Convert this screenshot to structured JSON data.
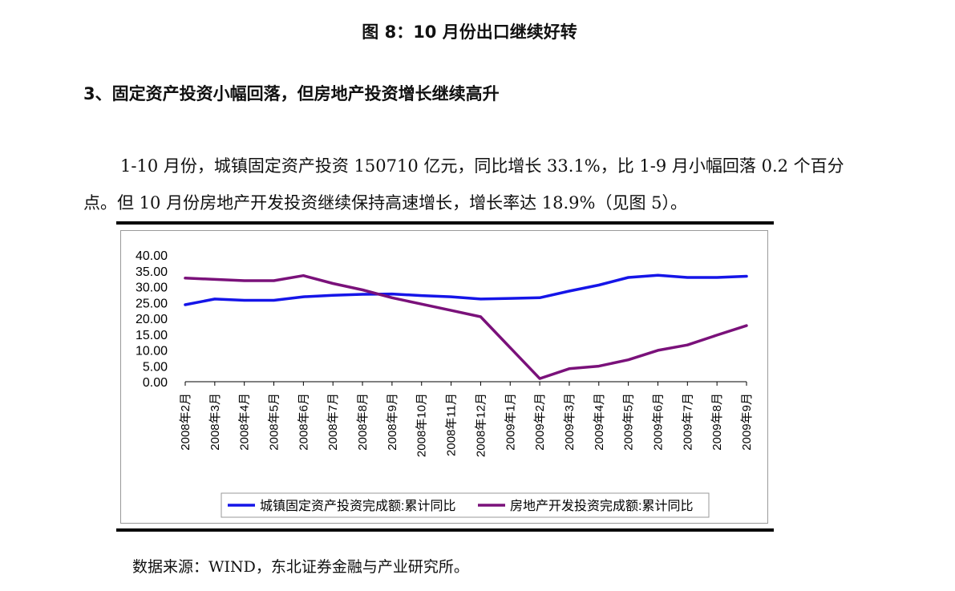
{
  "figure_caption": "图 8：10 月份出口继续好转",
  "section_heading": "3、固定资产投资小幅回落，但房地产投资增长继续高升",
  "paragraph": "1-10 月份，城镇固定资产投资 150710 亿元，同比增长 33.1%，比 1-9 月小幅回落 0.2 个百分点。但 10 月份房地产开发投资继续保持高速增长，增长率达 18.9%（见图 5）。",
  "source": "数据来源：WIND，东北证券金融与产业研究所。",
  "chart_data": {
    "type": "line",
    "title": "",
    "xlabel": "",
    "ylabel": "",
    "ylim": [
      0,
      40
    ],
    "yticks": [
      "0.00",
      "5.00",
      "10.00",
      "15.00",
      "20.00",
      "25.00",
      "30.00",
      "35.00",
      "40.00"
    ],
    "categories": [
      "2008年2月",
      "2008年3月",
      "2008年4月",
      "2008年5月",
      "2008年6月",
      "2008年7月",
      "2008年8月",
      "2008年9月",
      "2008年10月",
      "2008年11月",
      "2008年12月",
      "2009年1月",
      "2009年2月",
      "2009年3月",
      "2009年4月",
      "2009年5月",
      "2009年6月",
      "2009年7月",
      "2009年8月",
      "2009年9月"
    ],
    "legend_position": "bottom",
    "grid": false,
    "series": [
      {
        "name": "城镇固定资产投资完成额:累计同比",
        "color": "#1515e8",
        "values": [
          24.3,
          26.1,
          25.7,
          25.7,
          26.8,
          27.3,
          27.6,
          27.7,
          27.2,
          26.8,
          26.1,
          26.3,
          26.5,
          28.6,
          30.5,
          32.9,
          33.6,
          32.9,
          32.9,
          33.3
        ]
      },
      {
        "name": "房地产开发投资完成额:累计同比",
        "color": "#7a117a",
        "values": [
          32.7,
          32.3,
          31.9,
          31.9,
          33.5,
          31.0,
          29.0,
          26.5,
          24.5,
          22.5,
          20.5,
          null,
          1.0,
          4.1,
          4.9,
          6.9,
          9.9,
          11.6,
          14.7,
          17.7
        ]
      }
    ]
  }
}
